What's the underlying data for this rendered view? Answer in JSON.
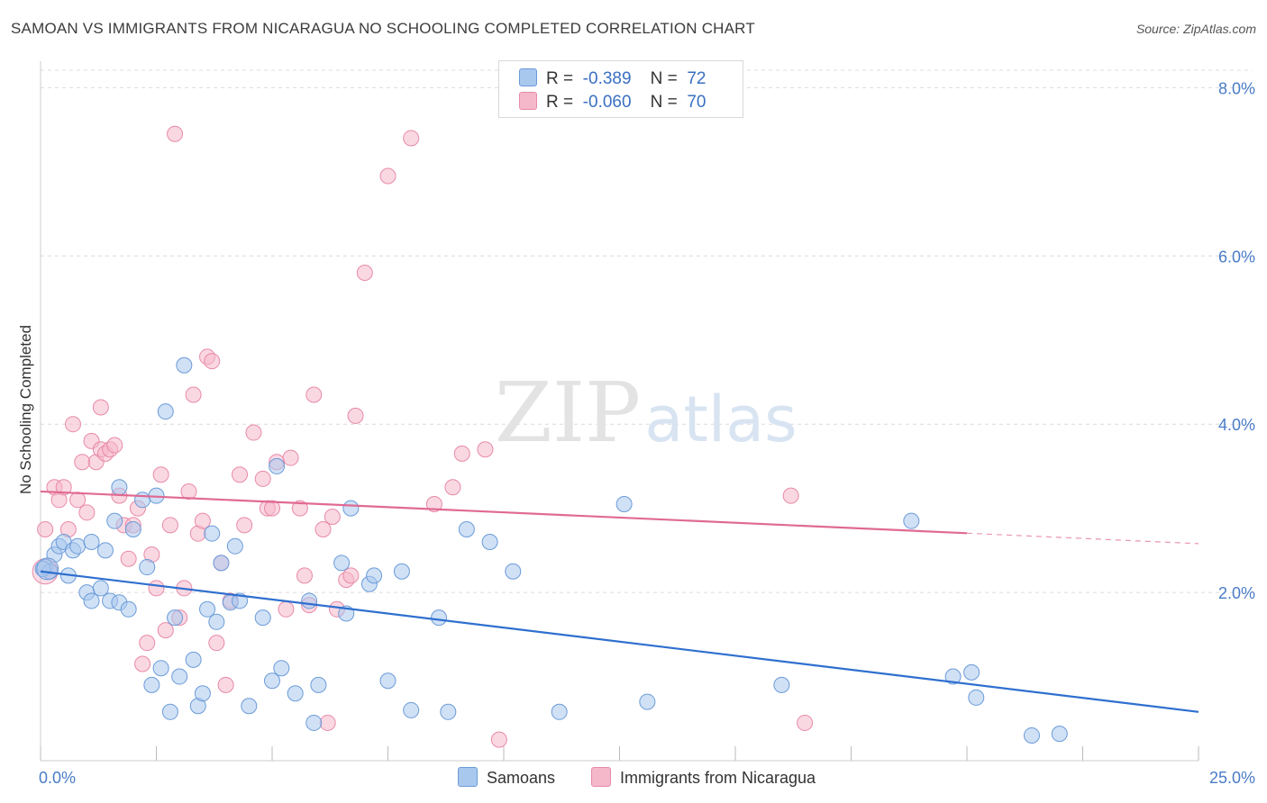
{
  "header": {
    "title": "SAMOAN VS IMMIGRANTS FROM NICARAGUA NO SCHOOLING COMPLETED CORRELATION CHART",
    "source": "Source: ZipAtlas.com"
  },
  "watermark": {
    "zip": "ZIP",
    "atlas": "atlas"
  },
  "legend": {
    "rows": [
      {
        "r_label": "R =",
        "r_value": "-0.389",
        "n_label": "N =",
        "n_value": "72"
      },
      {
        "r_label": "R =",
        "r_value": "-0.060",
        "n_label": "N =",
        "n_value": "70"
      }
    ]
  },
  "colors": {
    "samoans_fill": "#a9c8ee",
    "samoans_stroke": "#6b9bd8",
    "samoans_line": "#2f6fcf",
    "nicaragua_fill": "#f5b8cb",
    "nicaragua_stroke": "#e88aa8",
    "nicaragua_line": "#e06a93",
    "tick_label": "#4a7cc7"
  },
  "chart_data": {
    "type": "scatter",
    "title": "SAMOAN VS IMMIGRANTS FROM NICARAGUA NO SCHOOLING COMPLETED CORRELATION CHART",
    "xlabel": "",
    "ylabel": "No Schooling Completed",
    "xlim": [
      0,
      25
    ],
    "ylim": [
      0,
      8.4
    ],
    "x_tick_labels": [
      "0.0%",
      "25.0%"
    ],
    "y_ticks": [
      2,
      4,
      6,
      8
    ],
    "y_tick_labels": [
      "2.0%",
      "4.0%",
      "6.0%",
      "8.0%"
    ],
    "grid": true,
    "legend_placement": "bottom",
    "series": [
      {
        "name": "Samoans",
        "r": -0.389,
        "n": 72,
        "trend": {
          "x": [
            0,
            25
          ],
          "y": [
            2.25,
            0.58
          ]
        },
        "points": [
          [
            0.1,
            2.3
          ],
          [
            0.2,
            2.25
          ],
          [
            0.3,
            2.45
          ],
          [
            0.4,
            2.55
          ],
          [
            0.5,
            2.6
          ],
          [
            0.6,
            2.2
          ],
          [
            0.7,
            2.5
          ],
          [
            0.8,
            2.55
          ],
          [
            1.0,
            2.0
          ],
          [
            1.1,
            2.6
          ],
          [
            1.1,
            1.9
          ],
          [
            1.3,
            2.05
          ],
          [
            1.4,
            2.5
          ],
          [
            1.5,
            1.9
          ],
          [
            1.6,
            2.85
          ],
          [
            1.7,
            3.25
          ],
          [
            1.7,
            1.88
          ],
          [
            1.9,
            1.8
          ],
          [
            2.0,
            2.75
          ],
          [
            2.2,
            3.1
          ],
          [
            2.3,
            2.3
          ],
          [
            2.4,
            0.9
          ],
          [
            2.5,
            3.15
          ],
          [
            2.6,
            1.1
          ],
          [
            2.7,
            4.15
          ],
          [
            2.8,
            0.58
          ],
          [
            2.9,
            1.7
          ],
          [
            3.0,
            1.0
          ],
          [
            3.1,
            4.7
          ],
          [
            3.3,
            1.2
          ],
          [
            3.4,
            0.65
          ],
          [
            3.5,
            0.8
          ],
          [
            3.6,
            1.8
          ],
          [
            3.7,
            2.7
          ],
          [
            3.8,
            1.65
          ],
          [
            3.9,
            2.35
          ],
          [
            4.1,
            1.88
          ],
          [
            4.2,
            2.55
          ],
          [
            4.3,
            1.9
          ],
          [
            4.5,
            0.65
          ],
          [
            4.8,
            1.7
          ],
          [
            5.0,
            0.95
          ],
          [
            5.1,
            3.5
          ],
          [
            5.2,
            1.1
          ],
          [
            5.5,
            0.8
          ],
          [
            5.8,
            1.9
          ],
          [
            5.9,
            0.45
          ],
          [
            6.0,
            0.9
          ],
          [
            6.5,
            2.35
          ],
          [
            6.6,
            1.75
          ],
          [
            6.7,
            3.0
          ],
          [
            7.1,
            2.1
          ],
          [
            7.2,
            2.2
          ],
          [
            7.5,
            0.95
          ],
          [
            7.8,
            2.25
          ],
          [
            8.0,
            0.6
          ],
          [
            8.6,
            1.7
          ],
          [
            8.8,
            0.58
          ],
          [
            9.2,
            2.75
          ],
          [
            9.7,
            2.6
          ],
          [
            10.2,
            2.25
          ],
          [
            11.2,
            0.58
          ],
          [
            12.6,
            3.05
          ],
          [
            13.1,
            0.7
          ],
          [
            16.0,
            0.9
          ],
          [
            18.8,
            2.85
          ],
          [
            19.7,
            1.0
          ],
          [
            20.1,
            1.05
          ],
          [
            20.2,
            0.75
          ],
          [
            21.4,
            0.3
          ],
          [
            22.0,
            0.32
          ],
          [
            0.05,
            2.28
          ]
        ]
      },
      {
        "name": "Immigrants from Nicaragua",
        "r": -0.06,
        "n": 70,
        "trend": {
          "x": [
            0,
            25
          ],
          "y": [
            3.2,
            2.58
          ]
        },
        "trend_solid_until": 20,
        "points": [
          [
            0.1,
            2.75
          ],
          [
            0.2,
            2.25
          ],
          [
            0.3,
            3.25
          ],
          [
            0.4,
            3.1
          ],
          [
            0.5,
            3.25
          ],
          [
            0.6,
            2.75
          ],
          [
            0.7,
            4.0
          ],
          [
            0.8,
            3.1
          ],
          [
            0.9,
            3.55
          ],
          [
            1.0,
            2.95
          ],
          [
            1.1,
            3.8
          ],
          [
            1.2,
            3.55
          ],
          [
            1.3,
            3.7
          ],
          [
            1.3,
            4.2
          ],
          [
            1.4,
            3.65
          ],
          [
            1.5,
            3.7
          ],
          [
            1.6,
            3.75
          ],
          [
            1.7,
            3.15
          ],
          [
            1.8,
            2.8
          ],
          [
            1.9,
            2.4
          ],
          [
            2.0,
            2.8
          ],
          [
            2.1,
            3.0
          ],
          [
            2.2,
            1.15
          ],
          [
            2.3,
            1.4
          ],
          [
            2.4,
            2.45
          ],
          [
            2.5,
            2.05
          ],
          [
            2.6,
            3.4
          ],
          [
            2.7,
            1.55
          ],
          [
            2.8,
            2.8
          ],
          [
            2.9,
            7.45
          ],
          [
            3.0,
            1.7
          ],
          [
            3.1,
            2.05
          ],
          [
            3.2,
            3.2
          ],
          [
            3.3,
            4.35
          ],
          [
            3.4,
            2.7
          ],
          [
            3.5,
            2.85
          ],
          [
            3.6,
            4.8
          ],
          [
            3.7,
            4.75
          ],
          [
            3.8,
            1.4
          ],
          [
            3.9,
            2.35
          ],
          [
            4.0,
            0.9
          ],
          [
            4.1,
            1.9
          ],
          [
            4.3,
            3.4
          ],
          [
            4.4,
            2.8
          ],
          [
            4.6,
            3.9
          ],
          [
            4.8,
            3.35
          ],
          [
            4.9,
            3.0
          ],
          [
            5.0,
            3.0
          ],
          [
            5.1,
            3.55
          ],
          [
            5.3,
            1.8
          ],
          [
            5.4,
            3.6
          ],
          [
            5.6,
            3.0
          ],
          [
            5.7,
            2.2
          ],
          [
            5.8,
            1.85
          ],
          [
            5.9,
            4.35
          ],
          [
            6.1,
            2.75
          ],
          [
            6.2,
            0.45
          ],
          [
            6.3,
            2.9
          ],
          [
            6.4,
            1.8
          ],
          [
            6.6,
            2.15
          ],
          [
            6.7,
            2.2
          ],
          [
            6.8,
            4.1
          ],
          [
            7.0,
            5.8
          ],
          [
            7.5,
            6.95
          ],
          [
            8.0,
            7.4
          ],
          [
            8.5,
            3.05
          ],
          [
            8.9,
            3.25
          ],
          [
            9.1,
            3.65
          ],
          [
            9.6,
            3.7
          ],
          [
            9.9,
            0.25
          ]
        ]
      }
    ],
    "extra_points_nicaragua": [
      [
        16.2,
        3.15
      ],
      [
        16.5,
        0.45
      ]
    ]
  }
}
